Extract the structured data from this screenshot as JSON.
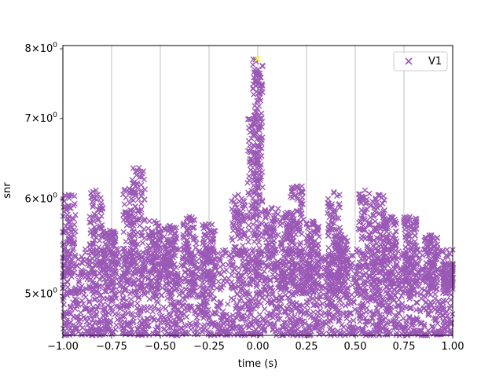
{
  "chart_data": {
    "type": "scatter",
    "xlabel": "time (s)",
    "ylabel": "snr",
    "xlim": [
      -1.0,
      1.0
    ],
    "ylim": [
      4.62,
      8.05
    ],
    "yscale": "log",
    "grid": "x-only",
    "legend_position": "top-right",
    "x_ticks": [
      -1.0,
      -0.75,
      -0.5,
      -0.25,
      0.0,
      0.25,
      0.5,
      0.75,
      1.0
    ],
    "x_tick_labels": [
      "−1.00",
      "−0.75",
      "−0.50",
      "−0.25",
      "0.00",
      "0.25",
      "0.50",
      "0.75",
      "1.00"
    ],
    "y_ticks": [
      {
        "value": 5,
        "base": "5",
        "mult": "×",
        "exp_base": "10",
        "exp": "0"
      },
      {
        "value": 6,
        "base": "6",
        "mult": "×",
        "exp_base": "10",
        "exp": "0"
      },
      {
        "value": 7,
        "base": "7",
        "mult": "×",
        "exp_base": "10",
        "exp": "0"
      },
      {
        "value": 8,
        "base": "8",
        "mult": "×",
        "exp_base": "10",
        "exp": "0"
      }
    ],
    "series": [
      {
        "name": "V1",
        "color": "#9b59b6",
        "marker": "x",
        "description_points": {
          "sample_peaks": [
            {
              "x": -0.97,
              "y": 6.05
            },
            {
              "x": -0.83,
              "y": 6.1
            },
            {
              "x": -0.76,
              "y": 5.65
            },
            {
              "x": -0.66,
              "y": 6.12
            },
            {
              "x": -0.61,
              "y": 6.37
            },
            {
              "x": -0.53,
              "y": 5.75
            },
            {
              "x": -0.45,
              "y": 5.7
            },
            {
              "x": -0.35,
              "y": 5.8
            },
            {
              "x": -0.25,
              "y": 5.72
            },
            {
              "x": -0.1,
              "y": 6.05
            },
            {
              "x": -0.02,
              "y": 7.0
            },
            {
              "x": 0.0,
              "y": 7.85
            },
            {
              "x": 0.07,
              "y": 5.9
            },
            {
              "x": 0.15,
              "y": 5.85
            },
            {
              "x": 0.2,
              "y": 6.15
            },
            {
              "x": 0.28,
              "y": 5.75
            },
            {
              "x": 0.39,
              "y": 6.08
            },
            {
              "x": 0.43,
              "y": 5.6
            },
            {
              "x": 0.55,
              "y": 6.1
            },
            {
              "x": 0.62,
              "y": 6.05
            },
            {
              "x": 0.68,
              "y": 5.8
            },
            {
              "x": 0.78,
              "y": 5.8
            },
            {
              "x": 0.89,
              "y": 5.6
            },
            {
              "x": 0.98,
              "y": 5.3
            }
          ]
        }
      }
    ],
    "highlight_point": {
      "x": 0.0,
      "y": 7.85,
      "color": "#ffff33"
    }
  },
  "legend": {
    "entries": [
      {
        "label": "V1",
        "color": "#9b59b6",
        "marker": "x"
      }
    ]
  }
}
